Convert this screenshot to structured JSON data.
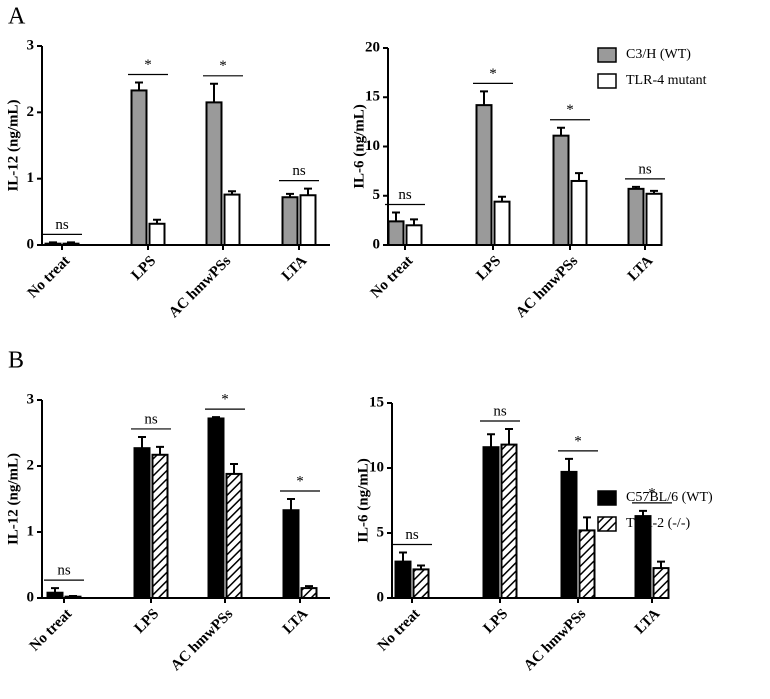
{
  "chart_data": [
    {
      "type": "bar",
      "panel_label": "A",
      "ylabel": "IL-12 (ng/mL)",
      "categories": [
        "No treat",
        "LPS",
        "AC hmwPSs",
        "LTA"
      ],
      "series": [
        {
          "color": "#9a9a9a",
          "values": [
            0.02,
            2.33,
            2.15,
            0.72
          ],
          "errors": [
            0.02,
            0.12,
            0.28,
            0.05
          ]
        },
        {
          "color": "#ffffff",
          "values": [
            0.02,
            0.32,
            0.76,
            0.75
          ],
          "errors": [
            0.02,
            0.06,
            0.05,
            0.1
          ]
        }
      ],
      "annotations": [
        "ns",
        "*",
        "*",
        "ns"
      ],
      "ylim": [
        0,
        3
      ],
      "yticks": [
        0,
        1,
        2,
        3
      ]
    },
    {
      "type": "bar",
      "ylabel": "IL-6 (ng/mL)",
      "categories": [
        "No treat",
        "LPS",
        "AC hmwPSs",
        "LTA"
      ],
      "series": [
        {
          "name": "C3/H (WT)",
          "color": "#9a9a9a",
          "values": [
            2.4,
            14.2,
            11.1,
            5.7
          ],
          "errors": [
            0.9,
            1.4,
            0.8,
            0.2
          ]
        },
        {
          "name": "TLR-4 mutant",
          "color": "#ffffff",
          "values": [
            2.0,
            4.4,
            6.5,
            5.2
          ],
          "errors": [
            0.6,
            0.5,
            0.8,
            0.3
          ]
        }
      ],
      "annotations": [
        "ns",
        "*",
        "*",
        "ns"
      ],
      "ylim": [
        0,
        20
      ],
      "yticks": [
        0,
        5,
        10,
        15,
        20
      ],
      "legend": "upper right"
    },
    {
      "type": "bar",
      "panel_label": "B",
      "ylabel": "IL-12 (ng/mL)",
      "categories": [
        "No treat",
        "LPS",
        "AC hmwPSs",
        "LTA"
      ],
      "series": [
        {
          "color": "#000000",
          "values": [
            0.08,
            2.27,
            2.72,
            1.33
          ],
          "errors": [
            0.07,
            0.17,
            0.02,
            0.17
          ]
        },
        {
          "color": "#000000",
          "pattern": "hatch",
          "values": [
            0.02,
            2.17,
            1.88,
            0.15
          ],
          "errors": [
            0.01,
            0.12,
            0.15,
            0.03
          ]
        }
      ],
      "annotations": [
        "ns",
        "ns",
        "*",
        "*"
      ],
      "ylim": [
        0,
        3
      ],
      "yticks": [
        0,
        1,
        2,
        3
      ]
    },
    {
      "type": "bar",
      "ylabel": "IL-6 (ng/mL)",
      "categories": [
        "No treat",
        "LPS",
        "AC hmwPSs",
        "LTA"
      ],
      "series": [
        {
          "name": "C57BL/6 (WT)",
          "color": "#000000",
          "values": [
            2.8,
            11.6,
            9.7,
            6.3
          ],
          "errors": [
            0.7,
            1.0,
            1.0,
            0.4
          ]
        },
        {
          "name": "TLR-2 (-/-)",
          "color": "#000000",
          "pattern": "hatch",
          "values": [
            2.2,
            11.8,
            5.2,
            2.3
          ],
          "errors": [
            0.3,
            1.2,
            1.0,
            0.5
          ]
        }
      ],
      "annotations": [
        "ns",
        "ns",
        "*",
        "*"
      ],
      "ylim": [
        0,
        15
      ],
      "yticks": [
        0,
        5,
        10,
        15
      ],
      "legend": "upper right"
    }
  ]
}
